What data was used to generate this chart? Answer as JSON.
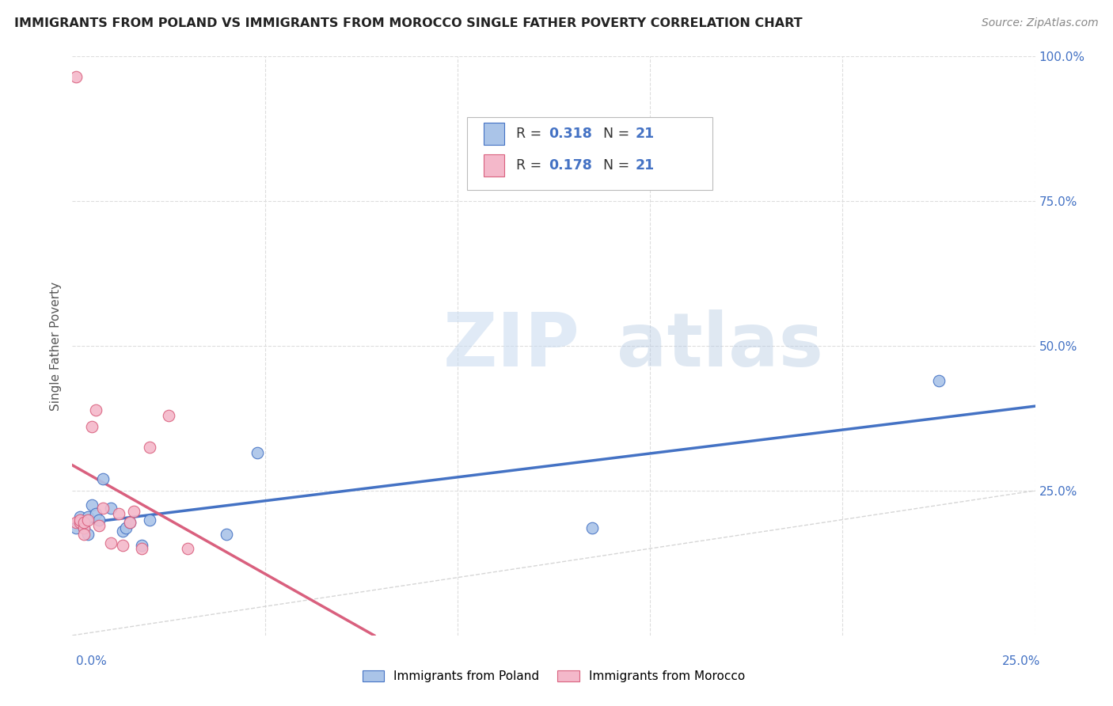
{
  "title": "IMMIGRANTS FROM POLAND VS IMMIGRANTS FROM MOROCCO SINGLE FATHER POVERTY CORRELATION CHART",
  "source": "Source: ZipAtlas.com",
  "ylabel": "Single Father Poverty",
  "y_ticks_right": [
    "100.0%",
    "75.0%",
    "50.0%",
    "25.0%"
  ],
  "xlim": [
    0.0,
    0.25
  ],
  "ylim": [
    0.0,
    1.0
  ],
  "poland_R": "0.318",
  "poland_N": "21",
  "morocco_R": "0.178",
  "morocco_N": "21",
  "poland_color": "#aac4e8",
  "poland_color_dark": "#4472c4",
  "morocco_color": "#f4b8ca",
  "morocco_color_dark": "#d9607e",
  "diagonal_color": "#cccccc",
  "watermark_zip": "ZIP",
  "watermark_atlas": "atlas",
  "poland_x": [
    0.001,
    0.002,
    0.002,
    0.003,
    0.003,
    0.004,
    0.004,
    0.005,
    0.006,
    0.007,
    0.008,
    0.01,
    0.013,
    0.014,
    0.015,
    0.018,
    0.02,
    0.04,
    0.048,
    0.135,
    0.225
  ],
  "poland_y": [
    0.185,
    0.195,
    0.205,
    0.195,
    0.185,
    0.175,
    0.205,
    0.225,
    0.21,
    0.2,
    0.27,
    0.22,
    0.18,
    0.185,
    0.195,
    0.155,
    0.2,
    0.175,
    0.315,
    0.185,
    0.44
  ],
  "morocco_x": [
    0.001,
    0.001,
    0.002,
    0.002,
    0.003,
    0.003,
    0.003,
    0.004,
    0.005,
    0.006,
    0.007,
    0.008,
    0.01,
    0.012,
    0.013,
    0.015,
    0.016,
    0.018,
    0.02,
    0.025,
    0.03
  ],
  "morocco_y": [
    0.965,
    0.195,
    0.195,
    0.2,
    0.185,
    0.195,
    0.175,
    0.2,
    0.36,
    0.39,
    0.19,
    0.22,
    0.16,
    0.21,
    0.155,
    0.195,
    0.215,
    0.15,
    0.325,
    0.38,
    0.15
  ],
  "legend_label_poland": "Immigrants from Poland",
  "legend_label_morocco": "Immigrants from Morocco",
  "background_color": "#ffffff",
  "grid_color": "#dddddd"
}
